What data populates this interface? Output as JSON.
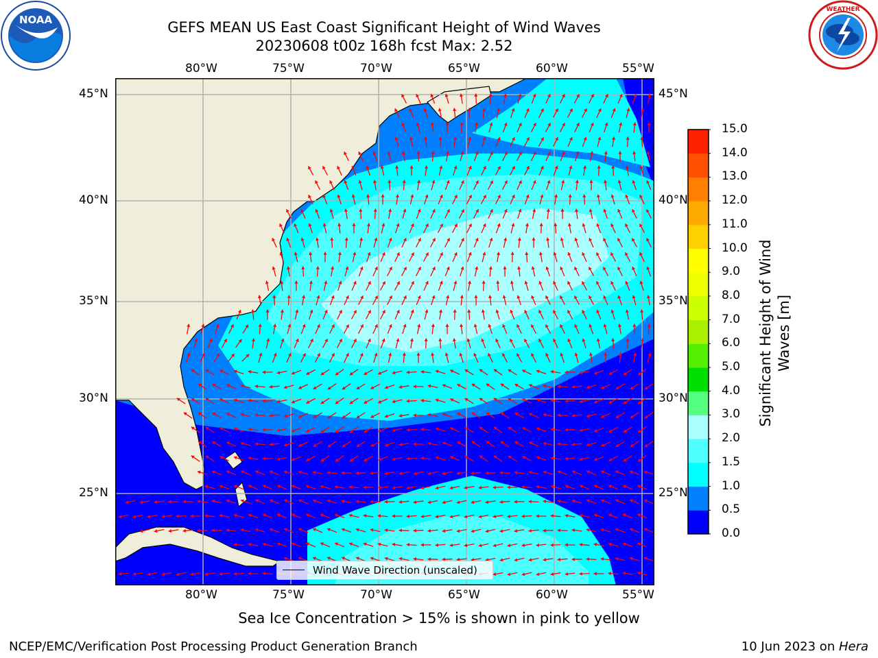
{
  "header": {
    "title_line1": "GEFS MEAN US East Coast Significant Height of Wind Waves",
    "title_line2": "20230608 t00z 168h fcst   Max: 2.52"
  },
  "logos": {
    "left": {
      "icon": "noaa-logo",
      "text": "NOAA",
      "ring_text": "NATIONAL OCEANIC AND ATMOSPHERIC ADMINISTRATION · U.S. DEPARTMENT OF COMMERCE"
    },
    "right": {
      "icon": "nws-logo",
      "ring_text": "NATIONAL WEATHER SERVICE"
    }
  },
  "map": {
    "lon_labels_top": [
      "80°W",
      "75°W",
      "70°W",
      "65°W",
      "60°W",
      "55°W"
    ],
    "lon_labels_bottom": [
      "80°W",
      "75°W",
      "70°W",
      "65°W",
      "60°W",
      "55°W"
    ],
    "lat_labels_left": [
      "45°N",
      "40°N",
      "35°N",
      "30°N",
      "25°N"
    ],
    "lat_labels_right": [
      "45°N",
      "40°N",
      "35°N",
      "30°N",
      "25°N"
    ],
    "land_color": "#efeedb",
    "vector_color": "#ff0000",
    "legend_text": "Wind Wave Direction (unscaled)"
  },
  "colorbar": {
    "label": "Significant Height of Wind Waves [m]",
    "ticks": [
      "0.0",
      "0.5",
      "1.0",
      "1.5",
      "2.0",
      "3.0",
      "4.0",
      "5.0",
      "6.0",
      "7.0",
      "8.0",
      "9.0",
      "10.0",
      "11.0",
      "12.0",
      "13.0",
      "14.0",
      "15.0"
    ],
    "colors": [
      "#0000ff",
      "#0080ff",
      "#00ffff",
      "#4dffff",
      "#aaffff",
      "#55ff80",
      "#00e000",
      "#55ee00",
      "#aaee00",
      "#ccff00",
      "#eeff00",
      "#ffff00",
      "#ffd000",
      "#ffaa00",
      "#ff8000",
      "#ff5000",
      "#ff2000"
    ]
  },
  "notes": {
    "sea_ice": "Sea Ice Concentration > 15% is shown in pink to yellow"
  },
  "footer": {
    "left": "NCEP/EMC/Verification Post Processing Product Generation Branch",
    "date": "10 Jun 2023 on ",
    "machine": "Hera"
  }
}
